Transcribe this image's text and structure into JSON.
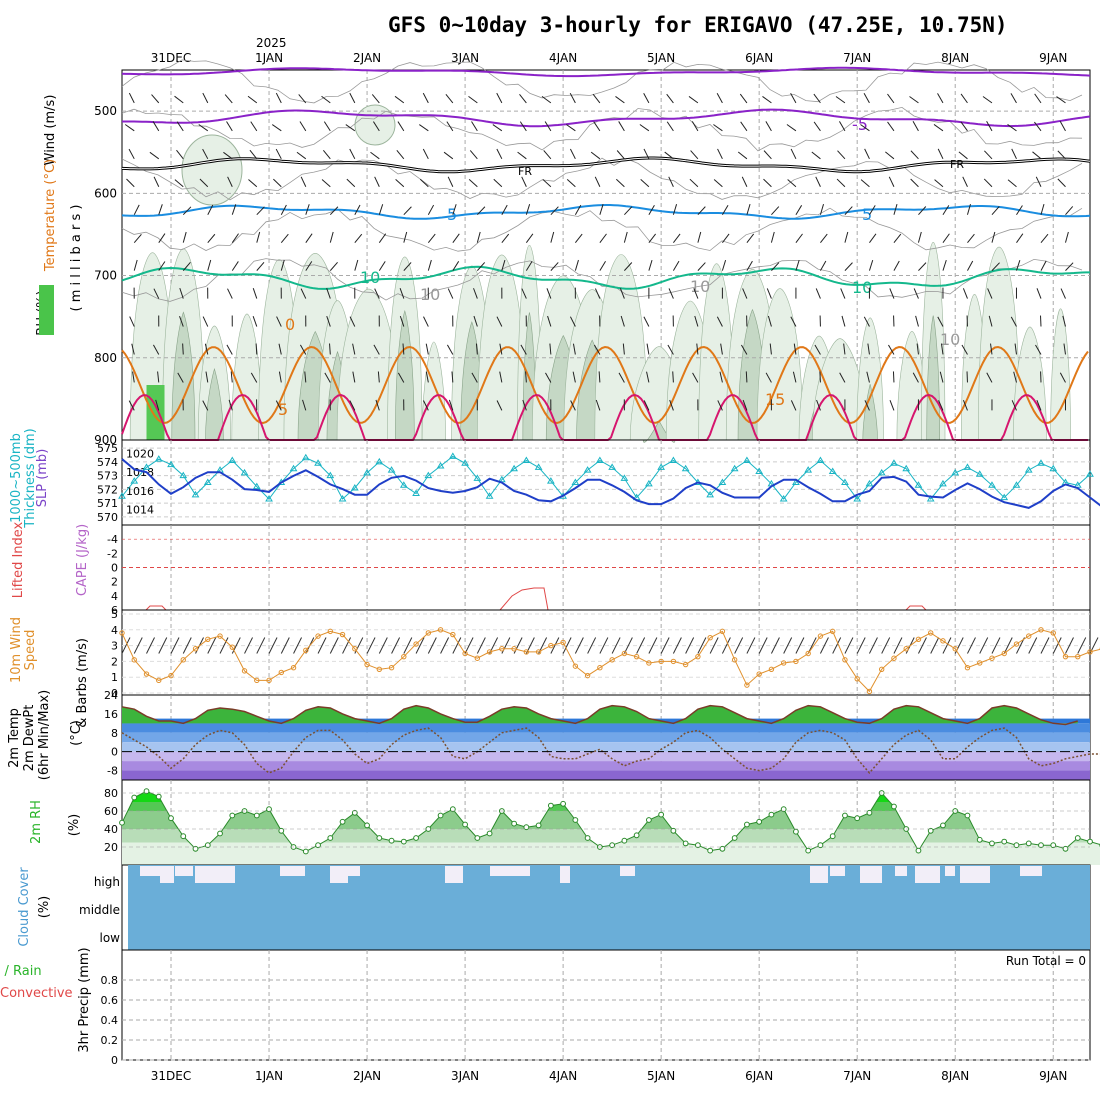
{
  "title": "GFS 0~10day 3-hourly for ERIGAVO (47.25E, 10.75N)",
  "year_label": "2025",
  "chart_data": {
    "type": "meteogram",
    "time": {
      "x_start_hours": 0,
      "x_end_hours": 237,
      "step_hours": 3,
      "date_labels": [
        "31DEC",
        "1JAN",
        "2JAN",
        "3JAN",
        "4JAN",
        "5JAN",
        "6JAN",
        "7JAN",
        "8JAN",
        "9JAN"
      ],
      "date_label_hours": [
        12,
        36,
        60,
        84,
        108,
        132,
        156,
        180,
        204,
        228
      ]
    },
    "panels": [
      {
        "name": "upper-air",
        "ylabels": [
          "Wind (m/s)",
          "Temperature (°C)",
          "RH (%)",
          "( m i l l i b a r s )"
        ],
        "yticks": [
          500,
          600,
          700,
          800,
          900
        ],
        "ylim": [
          450,
          900
        ],
        "contour_labels": [
          "-5",
          "FR",
          "FR",
          "5",
          "5",
          "10",
          "10",
          "10",
          "10",
          "0",
          "5",
          "15",
          "10"
        ]
      },
      {
        "name": "thickness-slp",
        "ylabels": [
          "1000~500mb",
          "Thickness (dm)",
          "SLP (mb)"
        ],
        "left_ticks": [
          575,
          574,
          573,
          572,
          571,
          570
        ],
        "right_ticks": [
          1020,
          1018,
          1016,
          1014
        ],
        "thickness": [
          571.5,
          572.6,
          573.6,
          574.2,
          573.8,
          573,
          571.6,
          572.5,
          573.4,
          574.1,
          573.2,
          572.2,
          571.3,
          572.5,
          573.5,
          574.3,
          573.9,
          573,
          571.3,
          572.1,
          573.2,
          574,
          573.4,
          572.3,
          571.7,
          573,
          573.7,
          574.4,
          573.9,
          572.8,
          571.5,
          572.7,
          573.5,
          574.1,
          573.6,
          572.6,
          571.5,
          572.5,
          573.4,
          574.1,
          573.6,
          572.8,
          571.4,
          572.4,
          573.6,
          574.1,
          573.5,
          572.5,
          571.6,
          572.5,
          573.5,
          574.1,
          573.3,
          572.4,
          571.3,
          572.5,
          573.4,
          574.1,
          573.3,
          572.5,
          571.3,
          572.4,
          573.2,
          573.9,
          573.5,
          572.3,
          571.3,
          572.4,
          573.2,
          573.6,
          573.1,
          572.3,
          571.4,
          572.3,
          573.4,
          573.9,
          573.5,
          572.5,
          572.3,
          573.1
        ],
        "slp": [
          1019.4,
          1018.3,
          1018,
          1016.7,
          1015.7,
          1016.4,
          1017.4,
          1018,
          1018,
          1017.2,
          1016.2,
          1016.1,
          1015.9,
          1016.9,
          1017.6,
          1018.2,
          1017.5,
          1016.7,
          1016.2,
          1015.6,
          1015.6,
          1016.7,
          1017.4,
          1017.6,
          1017.1,
          1016.3,
          1016,
          1015.8,
          1016,
          1016.4,
          1017.3,
          1016.9,
          1016,
          1015.6,
          1015,
          1014.9,
          1015.5,
          1016.3,
          1017.2,
          1017.2,
          1016.6,
          1015.9,
          1015,
          1014.6,
          1014.6,
          1015.2,
          1016.3,
          1016.9,
          1016.6,
          1015.8,
          1015.3,
          1015.3,
          1015.3,
          1016.5,
          1017.2,
          1017.2,
          1016.4,
          1015.7,
          1014.9,
          1014.9,
          1015.6,
          1016,
          1017.4,
          1017.5,
          1017,
          1015.6,
          1015.4,
          1015.3,
          1016.1,
          1016.8,
          1016.2,
          1015.4,
          1014.8,
          1014.5,
          1014.2,
          1014.9,
          1016,
          1016.7,
          1016.3,
          1015.3,
          1014.3,
          1014.7,
          1015.9
        ]
      },
      {
        "name": "cape-li",
        "ylabels": [
          "Lifted Index",
          "CAPE (J/kg)"
        ],
        "yticks": [
          -4,
          -2,
          0,
          2,
          4,
          6
        ],
        "ylim": [
          -6,
          6
        ]
      },
      {
        "name": "10m-wind",
        "ylabels": [
          "10m Wind",
          "Speed",
          "(m/s)",
          "& Barbs"
        ],
        "yticks": [
          0,
          1,
          2,
          3,
          4,
          5
        ],
        "speed": [
          3.8,
          2.1,
          1.2,
          0.8,
          1.1,
          2.1,
          2.8,
          3.4,
          3.6,
          2.9,
          1.4,
          0.8,
          0.8,
          1.3,
          1.6,
          2.7,
          3.6,
          3.9,
          3.7,
          2.8,
          1.8,
          1.5,
          1.6,
          2.3,
          3.1,
          3.8,
          4,
          3.7,
          2.5,
          2.2,
          2.6,
          2.8,
          2.8,
          2.6,
          2.6,
          3,
          3.2,
          1.7,
          1.1,
          1.6,
          2.1,
          2.5,
          2.3,
          1.9,
          2,
          2,
          1.8,
          2.3,
          3.5,
          3.9,
          2.1,
          0.5,
          1.2,
          1.5,
          1.9,
          2,
          2.5,
          3.6,
          3.9,
          2.1,
          0.9,
          0.1,
          1.5,
          2.2,
          2.8,
          3.4,
          3.8,
          3.3,
          2.8,
          1.6,
          1.9,
          2.2,
          2.5,
          3.1,
          3.6,
          4,
          3.8,
          2.3,
          2.3,
          2.6,
          2.8,
          3.1,
          4
        ]
      },
      {
        "name": "2m-temp",
        "ylabels": [
          "2m Temp",
          "2m DewPt",
          "(6hr Min/Max)",
          "(°C)"
        ],
        "yticks": [
          24,
          16,
          8,
          0,
          -8
        ],
        "temp": [
          19,
          18,
          15,
          13,
          13,
          12,
          14,
          17.5,
          18.5,
          18,
          17,
          15,
          13,
          12,
          14,
          17.5,
          19,
          18.5,
          16,
          14,
          13,
          12,
          14,
          18,
          19.5,
          18.5,
          16,
          14,
          12.5,
          12.5,
          15,
          18,
          19,
          18.5,
          16,
          14,
          13,
          12,
          14,
          18,
          19.5,
          19,
          17,
          14,
          13,
          12,
          14,
          18,
          19.5,
          19,
          16.5,
          14,
          13,
          12,
          14,
          17.5,
          19.5,
          19,
          16.5,
          14,
          12.5,
          12,
          14,
          18,
          19.5,
          19,
          16.5,
          14,
          13,
          12,
          14,
          18.5,
          19.5,
          18.5,
          16,
          13.5,
          12,
          11.5,
          13
        ],
        "dewpoint": [
          8,
          5,
          2,
          -2,
          -7,
          -3,
          3,
          7,
          9,
          8,
          3,
          -5,
          -9,
          -7,
          0,
          6,
          9,
          9,
          5,
          -1,
          -5,
          -3,
          3,
          7,
          9,
          10,
          6,
          -2,
          -3,
          0,
          4,
          8,
          9,
          10,
          6,
          -2,
          -3,
          -3,
          -1,
          1,
          -3,
          -6,
          -4,
          -3,
          1,
          4,
          8,
          9,
          6,
          1,
          -3,
          -7,
          -8,
          -7,
          -3,
          4,
          8,
          9,
          8,
          5,
          -3,
          -9,
          -3,
          3,
          7,
          9,
          5,
          -3,
          -3,
          2,
          6,
          9,
          10,
          6,
          -3,
          -6,
          -5,
          -3,
          -2,
          -1,
          -1,
          -2,
          -1,
          1
        ]
      },
      {
        "name": "2m-rh",
        "ylabels": [
          "2m RH",
          "(%)"
        ],
        "yticks": [
          80,
          60,
          40,
          20
        ],
        "rh": [
          47,
          75,
          82,
          76,
          52,
          32,
          18,
          22,
          35,
          55,
          60,
          55,
          62,
          38,
          20,
          15,
          22,
          30,
          48,
          58,
          44,
          30,
          27,
          26,
          30,
          40,
          55,
          62,
          45,
          30,
          35,
          60,
          46,
          42,
          44,
          66,
          68,
          50,
          30,
          20,
          22,
          27,
          33,
          50,
          56,
          38,
          24,
          22,
          16,
          18,
          30,
          45,
          48,
          56,
          62,
          37,
          16,
          22,
          32,
          55,
          52,
          58,
          80,
          65,
          40,
          16,
          38,
          44,
          60,
          55,
          28,
          24,
          26,
          22,
          24,
          22,
          22,
          18,
          30,
          26,
          22,
          24,
          30,
          28
        ]
      },
      {
        "name": "cloud-cover",
        "ylabels": [
          "Cloud Cover",
          "(%)"
        ],
        "levels": [
          "high",
          "middle",
          "low"
        ]
      },
      {
        "name": "precip",
        "ylabels": [
          "Total / Rain",
          "Convective",
          "3hr Precip (mm)"
        ],
        "yticks": [
          0,
          0.2,
          0.4,
          0.6,
          0.8
        ],
        "ylim": [
          0,
          1
        ],
        "run_total": "Run Total = 0"
      }
    ]
  }
}
